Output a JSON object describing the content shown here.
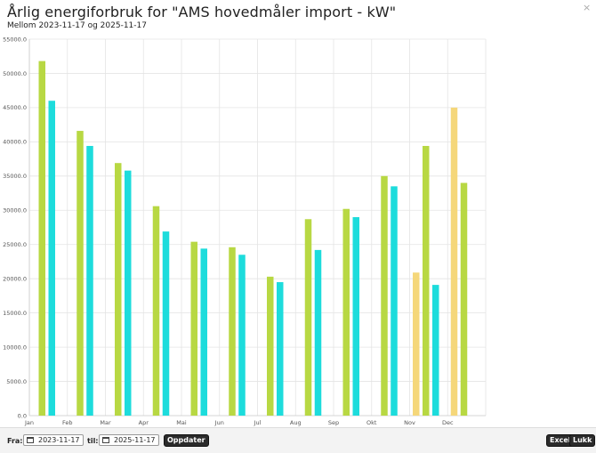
{
  "dialog": {
    "title": "Årlig energiforbruk for \"AMS hovedmåler import - kW\"",
    "subtitle": "Mellom 2023-11-17 og 2025-11-17",
    "close_icon": "×"
  },
  "filter": {
    "from_label": "Fra:",
    "from_value": "2023-11-17",
    "to_label": "til:",
    "to_value": "2025-11-17",
    "update_label": "Oppdater"
  },
  "actions": {
    "excel_label": "Excel",
    "close_label": "Lukk"
  },
  "chart_data": {
    "type": "bar",
    "categories": [
      "Jan",
      "Feb",
      "Mar",
      "Apr",
      "Mai",
      "Jun",
      "Jul",
      "Aug",
      "Sep",
      "Okt",
      "Nov",
      "Dec"
    ],
    "ylim": [
      0,
      55000
    ],
    "ytick_step": 5000,
    "grid": true,
    "series": [
      {
        "color": "#f5d77a",
        "values": [
          null,
          null,
          null,
          null,
          null,
          null,
          null,
          null,
          null,
          null,
          20900,
          45000
        ]
      },
      {
        "color": "#b8d843",
        "values": [
          51800,
          41600,
          36900,
          30600,
          25400,
          24600,
          20300,
          28700,
          30200,
          35000,
          39400,
          34000
        ]
      },
      {
        "color": "#1ddcdc",
        "values": [
          46000,
          39400,
          35800,
          26900,
          24400,
          23500,
          19500,
          24200,
          29000,
          33500,
          19100,
          null
        ]
      }
    ]
  }
}
